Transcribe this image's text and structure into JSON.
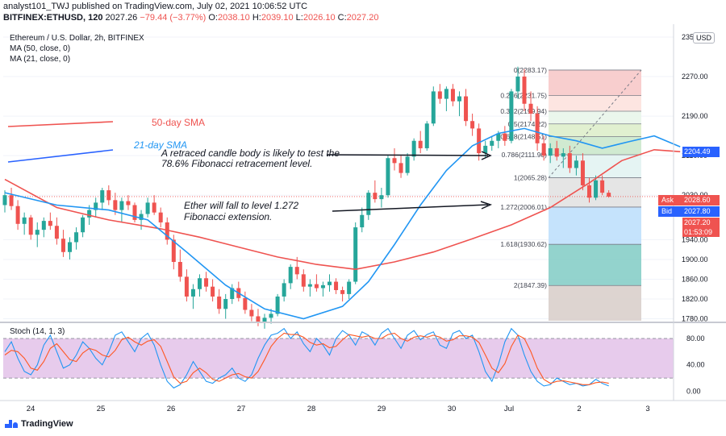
{
  "header": {
    "line1": "analyst101_TWJ published on TradingView.com, July 02, 2021 10:06:52 UTC",
    "symbol": "BITFINEX:ETHUSD, 120",
    "last": "2027.26",
    "change": "−79.44 (−3.77%)",
    "ohlc": {
      "o": "2038.10",
      "h": "2039.10",
      "l": "2026.10",
      "c": "2027.20"
    }
  },
  "legend": {
    "title": "Ethereum / U.S. Dollar, 2h, BITFINEX",
    "ma50": "MA (50, close, 0)",
    "ma21": "MA (21, close, 0)"
  },
  "currency_badge": "USD",
  "annotations": {
    "sma50": "50-day SMA",
    "sma21": "21-day SMA",
    "note1_line1": "A retraced candle body is likely to test the",
    "note1_line2": "78.6% Fibonacci retracement level.",
    "note2_line1": "Ether will fall to level 1.272",
    "note2_line2": "Fibonacci extension."
  },
  "tags": {
    "ask_label": "Ask",
    "ask_value": "2028.60",
    "bid_label": "Bid",
    "bid_value": "2027.80",
    "last_value": "2027.20",
    "countdown": "01:53:09",
    "ma_value": "2204.49"
  },
  "footer": {
    "brand": "TradingView"
  },
  "colors": {
    "up": "#26a69a",
    "down": "#ef5350",
    "ma50": "#ef5350",
    "ma21": "#2196f3",
    "stoch_k": "#2196f3",
    "stoch_d": "#ff5722",
    "stoch_band": "#e1bee7"
  },
  "chart_data": {
    "type": "candlestick",
    "price_axis": {
      "ticks": [
        2350,
        2270,
        2190,
        2110,
        2030,
        1940,
        1900,
        1860,
        1820,
        1780
      ],
      "tick_labels": [
        "2350.00",
        "2270.00",
        "2190.00",
        "2110.00",
        "2030.00",
        "1940.00",
        "1900.00",
        "1860.00",
        "1820.00",
        "1780.00"
      ]
    },
    "time_axis": {
      "labels": [
        "24",
        "25",
        "26",
        "27",
        "28",
        "29",
        "30",
        "Jul",
        "2",
        "3"
      ]
    },
    "candles": [
      [
        2010,
        2040,
        1995,
        2030
      ],
      [
        2030,
        2045,
        2000,
        2008
      ],
      [
        2008,
        2020,
        1960,
        1972
      ],
      [
        1972,
        1995,
        1950,
        1985
      ],
      [
        1985,
        1990,
        1940,
        1950
      ],
      [
        1950,
        1975,
        1925,
        1960
      ],
      [
        1960,
        1985,
        1945,
        1978
      ],
      [
        1978,
        1995,
        1960,
        1968
      ],
      [
        1968,
        1985,
        1930,
        1942
      ],
      [
        1942,
        1960,
        1905,
        1915
      ],
      [
        1915,
        1945,
        1900,
        1935
      ],
      [
        1935,
        1965,
        1920,
        1955
      ],
      [
        1955,
        1990,
        1945,
        1985
      ],
      [
        1985,
        2010,
        1970,
        2000
      ],
      [
        2000,
        2025,
        1985,
        2015
      ],
      [
        2015,
        2045,
        2000,
        2040
      ],
      [
        2040,
        2050,
        2010,
        2020
      ],
      [
        2020,
        2035,
        1990,
        2000
      ],
      [
        2000,
        2025,
        1975,
        2018
      ],
      [
        2018,
        2030,
        2000,
        2010
      ],
      [
        2010,
        2015,
        1975,
        1980
      ],
      [
        1980,
        2000,
        1960,
        1992
      ],
      [
        1992,
        2025,
        1985,
        2015
      ],
      [
        2015,
        2030,
        1990,
        1995
      ],
      [
        1995,
        2005,
        1965,
        1975
      ],
      [
        1975,
        1985,
        1930,
        1940
      ],
      [
        1940,
        1950,
        1880,
        1895
      ],
      [
        1895,
        1920,
        1855,
        1865
      ],
      [
        1865,
        1880,
        1815,
        1825
      ],
      [
        1825,
        1850,
        1800,
        1840
      ],
      [
        1840,
        1870,
        1825,
        1862
      ],
      [
        1862,
        1875,
        1835,
        1845
      ],
      [
        1845,
        1860,
        1815,
        1825
      ],
      [
        1825,
        1840,
        1790,
        1800
      ],
      [
        1800,
        1830,
        1780,
        1820
      ],
      [
        1820,
        1850,
        1810,
        1842
      ],
      [
        1842,
        1855,
        1815,
        1822
      ],
      [
        1822,
        1835,
        1790,
        1798
      ],
      [
        1798,
        1810,
        1775,
        1785
      ],
      [
        1785,
        1800,
        1765,
        1772
      ],
      [
        1772,
        1790,
        1760,
        1782
      ],
      [
        1782,
        1800,
        1770,
        1790
      ],
      [
        1790,
        1830,
        1785,
        1825
      ],
      [
        1825,
        1860,
        1815,
        1852
      ],
      [
        1852,
        1890,
        1840,
        1885
      ],
      [
        1885,
        1905,
        1860,
        1870
      ],
      [
        1870,
        1880,
        1835,
        1845
      ],
      [
        1845,
        1860,
        1825,
        1850
      ],
      [
        1850,
        1870,
        1835,
        1842
      ],
      [
        1842,
        1855,
        1825,
        1848
      ],
      [
        1848,
        1870,
        1835,
        1855
      ],
      [
        1855,
        1862,
        1830,
        1838
      ],
      [
        1838,
        1845,
        1815,
        1830
      ],
      [
        1830,
        1860,
        1820,
        1855
      ],
      [
        1855,
        1975,
        1850,
        1965
      ],
      [
        1965,
        2005,
        1955,
        1990
      ],
      [
        1990,
        2040,
        1980,
        2035
      ],
      [
        2035,
        2060,
        2015,
        2022
      ],
      [
        2022,
        2045,
        2005,
        2030
      ],
      [
        2030,
        2110,
        2025,
        2105
      ],
      [
        2105,
        2125,
        2080,
        2095
      ],
      [
        2095,
        2110,
        2065,
        2075
      ],
      [
        2075,
        2115,
        2070,
        2108
      ],
      [
        2108,
        2145,
        2100,
        2140
      ],
      [
        2140,
        2160,
        2115,
        2125
      ],
      [
        2125,
        2180,
        2120,
        2175
      ],
      [
        2175,
        2250,
        2170,
        2240
      ],
      [
        2240,
        2255,
        2215,
        2225
      ],
      [
        2225,
        2250,
        2200,
        2245
      ],
      [
        2245,
        2255,
        2210,
        2220
      ],
      [
        2220,
        2240,
        2190,
        2230
      ],
      [
        2230,
        2245,
        2170,
        2180
      ],
      [
        2180,
        2195,
        2150,
        2165
      ],
      [
        2165,
        2175,
        2100,
        2115
      ],
      [
        2115,
        2140,
        2105,
        2130
      ],
      [
        2130,
        2150,
        2120,
        2140
      ],
      [
        2140,
        2160,
        2125,
        2155
      ],
      [
        2155,
        2170,
        2130,
        2140
      ],
      [
        2140,
        2245,
        2135,
        2240
      ],
      [
        2240,
        2290,
        2225,
        2270
      ],
      [
        2270,
        2285,
        2200,
        2215
      ],
      [
        2215,
        2240,
        2180,
        2195
      ],
      [
        2195,
        2210,
        2120,
        2135
      ],
      [
        2135,
        2150,
        2100,
        2110
      ],
      [
        2110,
        2135,
        2095,
        2125
      ],
      [
        2125,
        2140,
        2100,
        2108
      ],
      [
        2108,
        2125,
        2085,
        2115
      ],
      [
        2115,
        2130,
        2075,
        2085
      ],
      [
        2085,
        2110,
        2070,
        2100
      ],
      [
        2100,
        2115,
        2040,
        2050
      ],
      [
        2050,
        2065,
        2015,
        2025
      ],
      [
        2025,
        2070,
        2020,
        2060
      ],
      [
        2060,
        2070,
        2030,
        2035
      ],
      [
        2035,
        2040,
        2025,
        2027
      ]
    ],
    "ma50": [
      [
        0,
        2062
      ],
      [
        8,
        2005
      ],
      [
        16,
        1980
      ],
      [
        24,
        1962
      ],
      [
        30,
        1945
      ],
      [
        36,
        1925
      ],
      [
        42,
        1905
      ],
      [
        48,
        1890
      ],
      [
        54,
        1880
      ],
      [
        60,
        1895
      ],
      [
        66,
        1915
      ],
      [
        72,
        1942
      ],
      [
        78,
        1970
      ],
      [
        84,
        2005
      ],
      [
        90,
        2055
      ],
      [
        95,
        2100
      ],
      [
        100,
        2122
      ],
      [
        104,
        2118
      ]
    ],
    "ma21": [
      [
        0,
        2035
      ],
      [
        8,
        2010
      ],
      [
        16,
        2000
      ],
      [
        22,
        1980
      ],
      [
        28,
        1915
      ],
      [
        34,
        1848
      ],
      [
        40,
        1800
      ],
      [
        46,
        1780
      ],
      [
        52,
        1805
      ],
      [
        56,
        1855
      ],
      [
        60,
        1930
      ],
      [
        64,
        2010
      ],
      [
        68,
        2080
      ],
      [
        72,
        2130
      ],
      [
        76,
        2155
      ],
      [
        80,
        2165
      ],
      [
        84,
        2150
      ],
      [
        88,
        2140
      ],
      [
        92,
        2125
      ],
      [
        96,
        2138
      ],
      [
        100,
        2150
      ],
      [
        104,
        2128
      ]
    ],
    "fibonacci": {
      "levels": [
        {
          "ratio": "0",
          "price": 2283.17
        },
        {
          "ratio": "0.236",
          "price": 2231.75
        },
        {
          "ratio": "0.382",
          "price": 2199.94
        },
        {
          "ratio": "0.5",
          "price": 2174.22
        },
        {
          "ratio": "0.618",
          "price": 2148.51
        },
        {
          "ratio": "0.786",
          "price": 2111.9
        },
        {
          "ratio": "1",
          "price": 2065.28
        },
        {
          "ratio": "1.272",
          "price": 2006.01
        },
        {
          "ratio": "1.618",
          "price": 1930.62
        },
        {
          "ratio": "2",
          "price": 1847.39
        }
      ],
      "labels": [
        "0(2283.17)",
        "0.236(2231.75)",
        "0.382(2199.94)",
        "0.5(2174.22)",
        "0.618(2148.51)",
        "0.786(2111.90)",
        "1(2065.28)",
        "1.272(2006.01)",
        "1.618(1930.62)",
        "2(1847.39)"
      ],
      "fills": [
        "#f7c6c5",
        "#fde0dc",
        "#e8f5e9",
        "#dcedc8",
        "#c8e6c9",
        "#e0f2f1",
        "#e0e0e0",
        "#bbdefb",
        "#80cbc4",
        "#b2dfdb",
        "#d7ccc8"
      ]
    },
    "stochastic": {
      "name": "Stoch (14, 1, 3)",
      "ticks": [
        "80.00",
        "40.00",
        "0.00"
      ],
      "tick_values": [
        80,
        40,
        0
      ],
      "band": [
        20,
        80
      ],
      "k": [
        60,
        75,
        50,
        30,
        25,
        40,
        70,
        85,
        60,
        35,
        40,
        55,
        75,
        65,
        50,
        40,
        60,
        85,
        90,
        75,
        60,
        80,
        88,
        70,
        40,
        15,
        5,
        10,
        25,
        45,
        30,
        15,
        12,
        20,
        25,
        35,
        20,
        15,
        25,
        50,
        70,
        85,
        88,
        95,
        80,
        90,
        72,
        60,
        80,
        70,
        55,
        80,
        92,
        85,
        70,
        90,
        85,
        70,
        88,
        95,
        80,
        65,
        85,
        92,
        78,
        86,
        90,
        70,
        65,
        88,
        92,
        80,
        85,
        60,
        30,
        15,
        40,
        75,
        95,
        85,
        55,
        30,
        15,
        8,
        10,
        20,
        15,
        10,
        12,
        8,
        10,
        18,
        12,
        8
      ],
      "d": [
        55,
        62,
        60,
        50,
        35,
        32,
        45,
        65,
        72,
        60,
        48,
        45,
        58,
        65,
        62,
        55,
        52,
        62,
        78,
        82,
        75,
        70,
        76,
        78,
        68,
        45,
        22,
        12,
        15,
        28,
        35,
        28,
        18,
        15,
        20,
        25,
        27,
        22,
        20,
        30,
        48,
        68,
        80,
        88,
        86,
        86,
        82,
        74,
        70,
        72,
        66,
        68,
        78,
        86,
        84,
        82,
        84,
        80,
        80,
        86,
        88,
        80,
        76,
        82,
        84,
        82,
        85,
        82,
        76,
        78,
        84,
        84,
        82,
        74,
        55,
        35,
        28,
        42,
        68,
        85,
        80,
        60,
        35,
        18,
        12,
        15,
        16,
        14,
        12,
        10,
        10,
        13,
        14,
        12
      ]
    }
  }
}
